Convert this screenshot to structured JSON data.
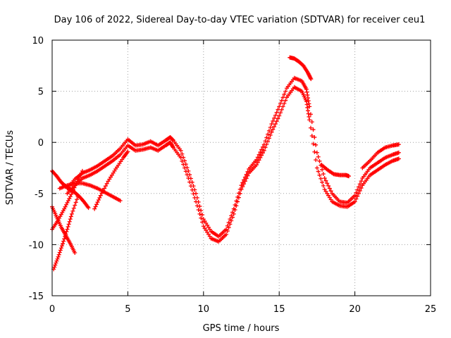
{
  "chart_data": {
    "type": "scatter",
    "title": "Day 106 of 2022, Sidereal Day-to-day VTEC variation (SDTVAR) for receiver ceu1",
    "xlabel": "GPS time / hours",
    "ylabel": "SDTVAR / TECUs",
    "xlim": [
      0,
      25
    ],
    "ylim": [
      -15,
      10
    ],
    "xticks": [
      0,
      5,
      10,
      15,
      20,
      25
    ],
    "yticks": [
      -15,
      -10,
      -5,
      0,
      5,
      10
    ],
    "grid": true,
    "marker": "+",
    "color": "#ff0000",
    "series": [
      {
        "name": "main-a",
        "x": [
          1.0,
          1.5,
          2.0,
          2.5,
          3.0,
          3.5,
          4.0,
          4.5,
          5.0,
          5.5,
          6.0,
          6.5,
          7.0,
          7.5,
          7.8,
          8.0,
          8.5,
          9.0,
          9.5,
          10.0,
          10.5,
          11.0,
          11.5,
          12.0,
          12.5,
          13.0,
          13.5,
          14.0,
          14.5,
          15.0,
          15.5,
          16.0,
          16.5,
          16.8,
          17.0,
          17.5,
          18.0,
          18.5,
          19.0,
          19.5,
          20.0,
          20.5,
          21.0,
          21.5,
          22.0,
          22.5,
          22.9
        ],
        "y": [
          -4.5,
          -3.6,
          -3.0,
          -2.7,
          -2.3,
          -1.8,
          -1.3,
          -0.6,
          0.3,
          -0.3,
          -0.2,
          0.1,
          -0.3,
          0.2,
          0.5,
          0.2,
          -0.8,
          -2.8,
          -5.0,
          -7.5,
          -8.7,
          -9.2,
          -8.5,
          -6.5,
          -4.2,
          -2.6,
          -1.7,
          -0.2,
          1.8,
          3.5,
          5.3,
          6.3,
          6.0,
          5.2,
          3.5,
          -1.0,
          -3.5,
          -5.0,
          -5.8,
          -5.9,
          -5.2,
          -3.5,
          -2.5,
          -2.0,
          -1.5,
          -1.2,
          -1.0
        ]
      },
      {
        "name": "main-b",
        "x": [
          1.0,
          1.5,
          2.0,
          2.5,
          3.0,
          3.5,
          4.0,
          4.5,
          5.0,
          5.5,
          6.0,
          6.5,
          7.0,
          7.5,
          7.8,
          8.0,
          8.5,
          9.0,
          9.5,
          10.0,
          10.5,
          11.0,
          11.5,
          12.0,
          12.5,
          13.0,
          13.5,
          14.0,
          14.5,
          15.0,
          15.5,
          16.0,
          16.5,
          16.8,
          17.0,
          17.5,
          18.0,
          18.5,
          19.0,
          19.5,
          20.0,
          20.5,
          21.0,
          21.5,
          22.0,
          22.5,
          22.9
        ],
        "y": [
          -5.0,
          -4.2,
          -3.5,
          -3.2,
          -2.8,
          -2.3,
          -1.8,
          -1.2,
          -0.3,
          -0.8,
          -0.7,
          -0.5,
          -0.8,
          -0.3,
          0.0,
          -0.5,
          -1.5,
          -3.5,
          -5.8,
          -8.2,
          -9.4,
          -9.7,
          -9.0,
          -7.0,
          -4.6,
          -3.0,
          -2.2,
          -0.8,
          1.0,
          2.6,
          4.4,
          5.4,
          5.0,
          4.0,
          2.2,
          -2.5,
          -4.6,
          -5.8,
          -6.2,
          -6.3,
          -5.8,
          -4.2,
          -3.2,
          -2.7,
          -2.2,
          -1.8,
          -1.6
        ]
      },
      {
        "name": "peak-top",
        "x": [
          15.7,
          16.0,
          16.3,
          16.6,
          16.9,
          17.1
        ],
        "y": [
          8.3,
          8.2,
          7.9,
          7.5,
          6.8,
          6.2
        ]
      },
      {
        "name": "branch-18-19",
        "x": [
          17.8,
          18.2,
          18.6,
          19.0,
          19.4,
          19.6
        ],
        "y": [
          -2.2,
          -2.7,
          -3.1,
          -3.2,
          -3.2,
          -3.3
        ]
      },
      {
        "name": "branch-end",
        "x": [
          20.5,
          21.0,
          21.5,
          22.0,
          22.5,
          22.9
        ],
        "y": [
          -2.5,
          -1.8,
          -1.0,
          -0.5,
          -0.3,
          -0.2
        ]
      },
      {
        "name": "start-1",
        "x": [
          0.0,
          0.3,
          0.6,
          0.9,
          1.2,
          1.5,
          1.8,
          2.1,
          2.4
        ],
        "y": [
          -2.8,
          -3.3,
          -3.9,
          -4.3,
          -4.6,
          -4.9,
          -5.3,
          -5.8,
          -6.4
        ]
      },
      {
        "name": "start-2",
        "x": [
          0.0,
          0.3,
          0.6,
          0.9,
          1.2,
          1.5
        ],
        "y": [
          -6.3,
          -7.3,
          -8.3,
          -9.1,
          -9.9,
          -10.8
        ]
      },
      {
        "name": "start-3",
        "x": [
          0.0,
          0.4,
          0.8,
          1.2,
          1.6,
          2.0
        ],
        "y": [
          -8.5,
          -7.6,
          -6.5,
          -5.3,
          -4.0,
          -2.8
        ]
      },
      {
        "name": "start-4",
        "x": [
          0.1,
          0.4,
          0.7,
          1.0,
          1.3,
          1.7
        ],
        "y": [
          -12.4,
          -11.2,
          -9.9,
          -8.5,
          -7.0,
          -5.3
        ]
      },
      {
        "name": "start-5",
        "x": [
          0.5,
          1.0,
          1.5,
          2.0,
          2.5,
          3.0,
          3.5,
          4.0,
          4.5
        ],
        "y": [
          -4.5,
          -4.2,
          -4.0,
          -4.0,
          -4.2,
          -4.5,
          -4.9,
          -5.3,
          -5.7
        ]
      },
      {
        "name": "start-6",
        "x": [
          2.8,
          3.2,
          3.7,
          4.2,
          4.7,
          5.0
        ],
        "y": [
          -6.5,
          -5.2,
          -3.8,
          -2.6,
          -1.5,
          -0.9
        ]
      }
    ]
  }
}
